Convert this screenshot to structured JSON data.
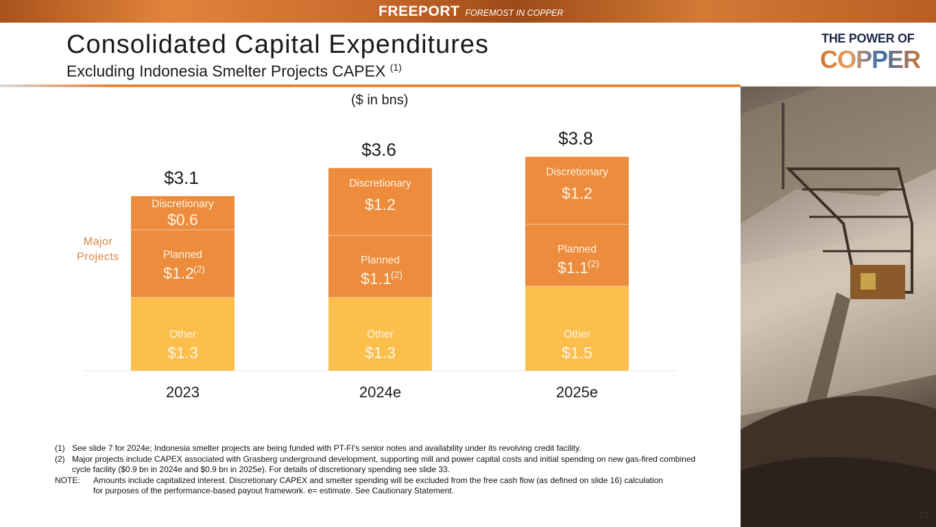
{
  "header": {
    "brand_name": "FREEPORT",
    "brand_tagline": "FOREMOST IN COPPER"
  },
  "title": "Consolidated Capital Expenditures",
  "subtitle": "Excluding Indonesia Smelter Projects CAPEX",
  "subtitle_note": "(1)",
  "logo": {
    "top": "THE POWER OF",
    "main": "COPPER"
  },
  "unit_note": "($ in bns)",
  "major_projects_label": [
    "Major",
    "Projects"
  ],
  "chart_data": {
    "type": "bar",
    "stacked": true,
    "categories": [
      "2023",
      "2024e",
      "2025e"
    ],
    "totals": [
      3.1,
      3.6,
      3.8
    ],
    "total_labels": [
      "$3.1",
      "$3.6",
      "$3.8"
    ],
    "series": [
      {
        "name": "Other",
        "values": [
          1.3,
          1.3,
          1.5
        ],
        "labels": [
          "$1.3",
          "$1.3",
          "$1.5"
        ],
        "color": "#fcbf4c"
      },
      {
        "name": "Planned",
        "values": [
          1.2,
          1.1,
          1.1
        ],
        "labels": [
          "$1.2",
          "$1.1",
          "$1.1"
        ],
        "label_notes": [
          "(2)",
          "(2)",
          "(2)"
        ],
        "color": "#ec8c3c"
      },
      {
        "name": "Discretionary",
        "values": [
          0.6,
          1.2,
          1.2
        ],
        "labels": [
          "$0.6",
          "$1.2",
          "$1.2"
        ],
        "color": "#ec8c3c"
      }
    ],
    "ylim": [
      0,
      3.8
    ],
    "grid": false,
    "legend": "none"
  },
  "colors": {
    "accent": "#e8843a",
    "segment_text": "#fdf3e4",
    "total_text": "#1b1b1b",
    "major_label": "#d9843f"
  },
  "footnotes": [
    {
      "mark": "(1)",
      "text": "See slide 7 for 2024e; Indonesia smelter projects are being funded with PT-FI's senior notes and availability under its revolving credit facility."
    },
    {
      "mark": "(2)",
      "text": "Major projects include CAPEX associated with Grasberg underground development, supporting mill and power capital costs and initial spending on new gas-fired combined cycle facility ($0.9 bn in 2024e and $0.9 bn in 2025e). For details of discretionary spending see slide 33."
    }
  ],
  "note": {
    "mark": "NOTE:",
    "line1": "Amounts include capitalized interest. Discretionary CAPEX and smelter spending will be excluded from the free cash flow (as defined on slide 16) calculation",
    "line2": "for purposes of the performance-based payout framework. e= estimate. See Cautionary Statement."
  },
  "page_number": "15"
}
